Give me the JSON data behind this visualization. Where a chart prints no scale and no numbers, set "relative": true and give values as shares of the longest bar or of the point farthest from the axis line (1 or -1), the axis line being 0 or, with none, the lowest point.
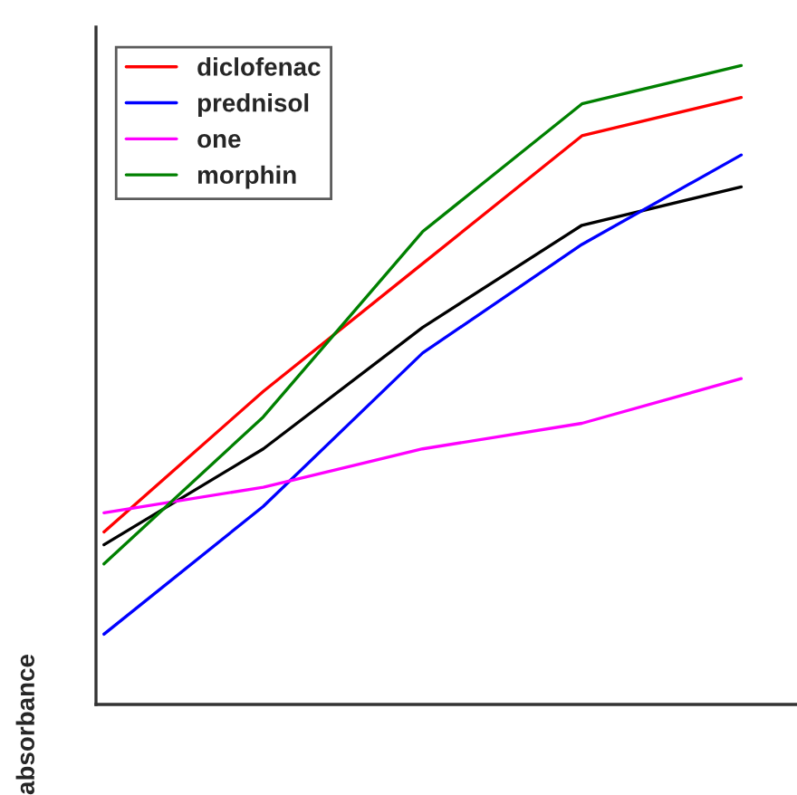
{
  "chart_data": {
    "type": "line",
    "ylabel": "absorbance",
    "relative": true,
    "categories": [
      null,
      null,
      null,
      null,
      null
    ],
    "series": [
      {
        "color": "#000000",
        "values": [
          0.25,
          0.4,
          0.59,
          0.75,
          0.81
        ]
      },
      {
        "name": "diclofenac",
        "color": "#ff0000",
        "values": [
          0.27,
          0.49,
          0.69,
          0.89,
          0.95
        ]
      },
      {
        "name": "prednisol",
        "color": "#0000ff",
        "values": [
          0.11,
          0.31,
          0.55,
          0.72,
          0.86
        ]
      },
      {
        "name": "one",
        "color": "#ff00ff",
        "values": [
          0.3,
          0.34,
          0.4,
          0.44,
          0.51
        ]
      },
      {
        "name": "morphin",
        "color": "#008000",
        "values": [
          0.22,
          0.45,
          0.74,
          0.94,
          1.0
        ]
      }
    ],
    "legend": "top left",
    "marker": "none",
    "line_style": "solid"
  }
}
